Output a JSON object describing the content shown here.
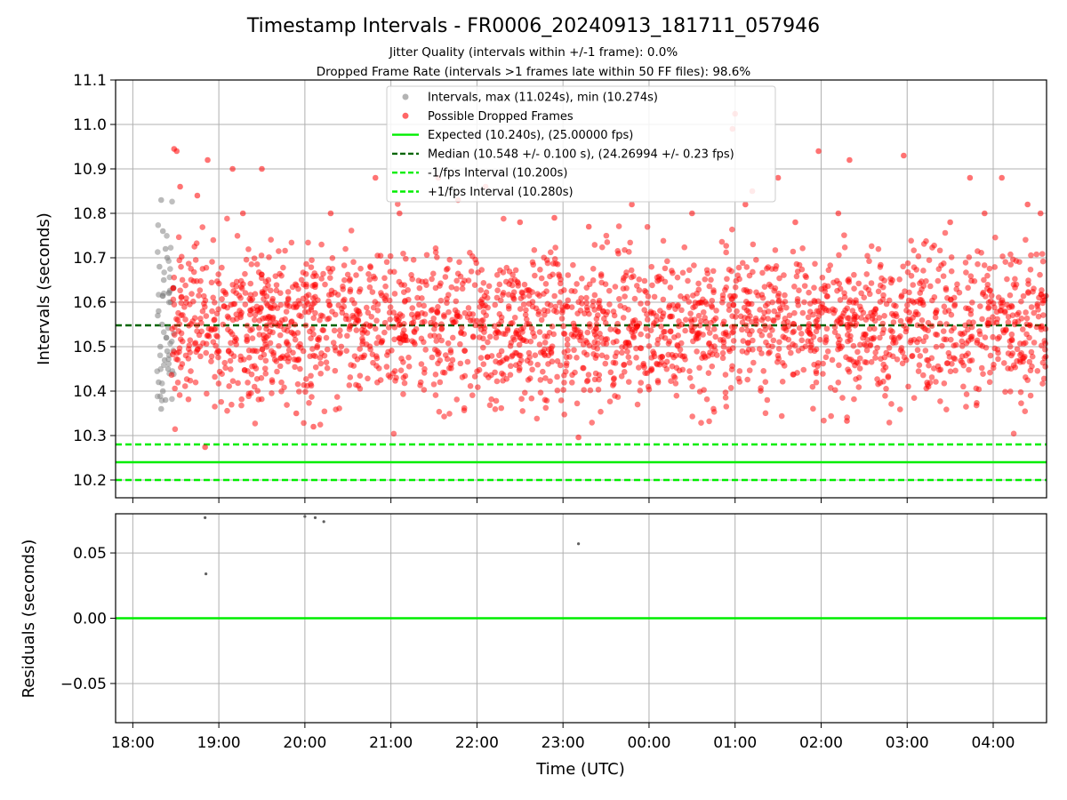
{
  "chart_data": [
    {
      "type": "scatter",
      "title": "Timestamp Intervals - FR0006_20240913_181711_057946",
      "subtitles": [
        "Jitter Quality (intervals within +/-1 frame): 0.0%",
        "Dropped Frame Rate (intervals >1 frames late within 50 FF files): 98.6%"
      ],
      "xlabel": "",
      "ylabel": "Intervals (seconds)",
      "xlim_hours": [
        17.8,
        28.62
      ],
      "ylim": [
        10.16,
        11.1
      ],
      "yticks": [
        "10.2",
        "10.3",
        "10.4",
        "10.5",
        "10.6",
        "10.7",
        "10.8",
        "10.9",
        "11.0",
        "11.1"
      ],
      "xticks": [
        "18:00",
        "19:00",
        "20:00",
        "21:00",
        "22:00",
        "23:00",
        "00:00",
        "01:00",
        "02:00",
        "03:00",
        "04:00"
      ],
      "grid": true,
      "legend_position": "upper-center",
      "legend": [
        {
          "label": "Intervals, max (11.024s), min (10.274s)",
          "kind": "marker",
          "color": "#808080"
        },
        {
          "label": "Possible Dropped Frames",
          "kind": "marker",
          "color": "#ff0000"
        },
        {
          "label": "Expected (10.240s), (25.00000 fps)",
          "kind": "solid",
          "color": "#00ee00"
        },
        {
          "label": "Median (10.548 +/- 0.100 s), (24.26994 +/- 0.23 fps)",
          "kind": "dashed",
          "color": "#006400"
        },
        {
          "label": "-1/fps Interval (10.200s)",
          "kind": "dashed",
          "color": "#00ee00"
        },
        {
          "label": "+1/fps Interval (10.280s)",
          "kind": "dashed",
          "color": "#00ee00"
        }
      ],
      "reference_lines": [
        {
          "value": 10.24,
          "style": "solid",
          "color": "#00ee00"
        },
        {
          "value": 10.548,
          "style": "dashed",
          "color": "#006400"
        },
        {
          "value": 10.2,
          "style": "dashed",
          "color": "#00ee00"
        },
        {
          "value": 10.28,
          "style": "dashed",
          "color": "#00ee00"
        }
      ],
      "series": [
        {
          "color": "#808080",
          "x_range_hours": [
            18.28,
            18.48
          ],
          "y_range": [
            10.36,
            10.84
          ],
          "points": [
            [
              18.33,
              10.83
            ],
            [
              18.35,
              10.76
            ],
            [
              18.38,
              10.72
            ],
            [
              18.4,
              10.7
            ],
            [
              18.31,
              10.68
            ],
            [
              18.36,
              10.65
            ],
            [
              18.42,
              10.62
            ],
            [
              18.3,
              10.58
            ],
            [
              18.34,
              10.55
            ],
            [
              18.39,
              10.52
            ],
            [
              18.32,
              10.5
            ],
            [
              18.37,
              10.47
            ],
            [
              18.41,
              10.45
            ],
            [
              18.3,
              10.42
            ],
            [
              18.35,
              10.4
            ],
            [
              18.38,
              10.38
            ],
            [
              18.33,
              10.36
            ],
            [
              18.44,
              10.6
            ],
            [
              18.29,
              10.57
            ],
            [
              18.4,
              10.49
            ]
          ]
        },
        {
          "color": "#ff0000",
          "x_range_hours": [
            18.45,
            28.62
          ],
          "y_range": [
            10.274,
            11.024
          ],
          "points": [
            [
              18.48,
              10.945
            ],
            [
              18.51,
              10.94
            ],
            [
              18.87,
              10.92
            ],
            [
              19.16,
              10.9
            ],
            [
              19.5,
              10.9
            ],
            [
              20.82,
              10.88
            ],
            [
              21.55,
              10.88
            ],
            [
              21.78,
              10.83
            ],
            [
              22.1,
              10.86
            ],
            [
              24.97,
              10.99
            ],
            [
              25.0,
              11.024
            ],
            [
              25.12,
              10.82
            ],
            [
              25.2,
              10.85
            ],
            [
              25.5,
              10.88
            ],
            [
              25.97,
              10.94
            ],
            [
              26.33,
              10.92
            ],
            [
              26.96,
              10.93
            ],
            [
              27.73,
              10.88
            ],
            [
              28.1,
              10.88
            ],
            [
              28.4,
              10.82
            ],
            [
              18.84,
              10.274
            ],
            [
              23.18,
              10.296
            ],
            [
              26.3,
              10.333
            ],
            [
              19.9,
              10.35
            ],
            [
              20.1,
              10.32
            ],
            [
              18.55,
              10.86
            ],
            [
              18.75,
              10.84
            ],
            [
              19.28,
              10.8
            ],
            [
              20.3,
              10.8
            ],
            [
              27.5,
              10.78
            ],
            [
              26.2,
              10.8
            ],
            [
              23.8,
              10.82
            ],
            [
              24.5,
              10.8
            ],
            [
              21.1,
              10.8
            ],
            [
              22.5,
              10.78
            ],
            [
              22.9,
              10.79
            ],
            [
              23.3,
              10.77
            ],
            [
              25.7,
              10.78
            ],
            [
              27.9,
              10.8
            ],
            [
              28.55,
              10.8
            ]
          ]
        }
      ]
    },
    {
      "type": "scatter",
      "title": "",
      "xlabel": "Time (UTC)",
      "ylabel": "Residuals (seconds)",
      "xlim_hours": [
        17.8,
        28.62
      ],
      "ylim": [
        -0.08,
        0.08
      ],
      "yticks": [
        "0.05",
        "0.00",
        "−0.05"
      ],
      "ytick_values": [
        0.05,
        0.0,
        -0.05
      ],
      "xticks": [
        "18:00",
        "19:00",
        "20:00",
        "21:00",
        "22:00",
        "23:00",
        "00:00",
        "01:00",
        "02:00",
        "03:00",
        "04:00"
      ],
      "grid": true,
      "reference_lines": [
        {
          "value": 0.0,
          "style": "solid",
          "color": "#00ee00"
        }
      ],
      "series": [
        {
          "color": "#606060",
          "points": [
            [
              18.84,
              0.077
            ],
            [
              18.85,
              0.034
            ],
            [
              20.0,
              0.078
            ],
            [
              20.12,
              0.077
            ],
            [
              20.22,
              0.074
            ],
            [
              23.18,
              0.057
            ]
          ]
        }
      ]
    }
  ]
}
